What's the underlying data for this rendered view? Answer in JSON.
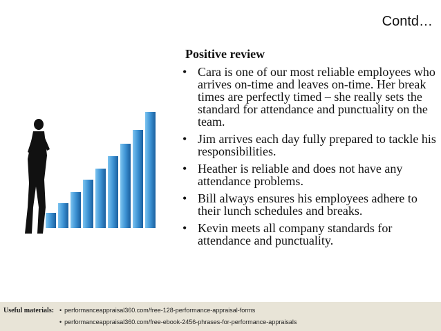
{
  "slide": {
    "title": "Contd…"
  },
  "review": {
    "heading": "Positive review",
    "bullet": "•",
    "items": [
      "Cara is one of our most reliable employees who arrives on-time and leaves on-time. Her break times are perfectly timed – she really sets the standard for attendance and punctuality on the team.",
      "Jim arrives each day fully prepared to tackle his responsibilities.",
      "Heather is reliable and does not have any attendance problems.",
      "Bill always ensures his employees adhere to their lunch schedules and breaks.",
      "Kevin meets all company standards for attendance and punctuality."
    ]
  },
  "footer": {
    "label": "Useful materials",
    "separator": ":",
    "bullet": "•",
    "links": [
      "performanceappraisal360.com/free-128-performance-appraisal-forms",
      "performanceappraisal360.com/free-ebook-2456-phrases-for-performance-appraisals"
    ]
  },
  "colors": {
    "bar_light": "#5ab0e6",
    "bar_dark": "#1e6fb0",
    "footer_bg": "#e8e4d7"
  },
  "icons": [
    "businessman-silhouette",
    "ascending-bar-chart"
  ]
}
